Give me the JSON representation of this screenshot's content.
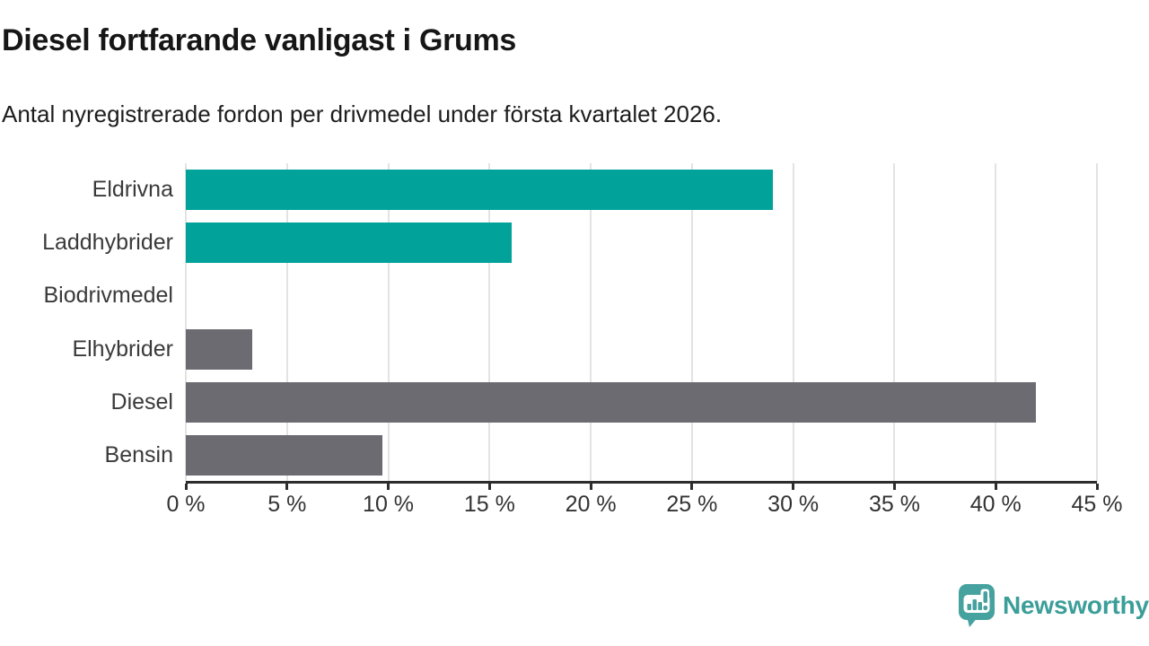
{
  "chart_data": {
    "type": "bar",
    "orientation": "horizontal",
    "title": "Diesel fortfarande vanligast i Grums",
    "subtitle": "Antal nyregistrerade fordon per drivmedel under första kvartalet 2026.",
    "categories": [
      "Eldrivna",
      "Laddhybrider",
      "Biodrivmedel",
      "Elhybrider",
      "Diesel",
      "Bensin"
    ],
    "values": [
      29,
      16.1,
      0,
      3.3,
      42,
      9.7
    ],
    "unit": "%",
    "bar_colors": [
      "#00a29a",
      "#00a29a",
      "#00a29a",
      "#6c6b72",
      "#6c6b72",
      "#6c6b72"
    ],
    "xlim": [
      0,
      45
    ],
    "x_tick_step": 5,
    "x_tick_labels": [
      "0 %",
      "5 %",
      "10 %",
      "15 %",
      "20 %",
      "25 %",
      "30 %",
      "35 %",
      "40 %",
      "45 %"
    ],
    "xlabel": "",
    "ylabel": "",
    "grid": true,
    "legend": false
  },
  "branding": {
    "logo_text": "Newsworthy",
    "logo_icon": "newsworthy-speech-bubble-bar-chart-icon",
    "logo_color": "#3b9e99",
    "logo_icon_color": "#46a29e"
  },
  "colors": {
    "background": "#ffffff",
    "title": "#161616",
    "subtitle": "#1d1d1d",
    "axis": "#2d2d2d",
    "tick_label": "#333333",
    "category_label": "#3a3a3a",
    "gridline": "#e3e3e3",
    "teal_bar": "#00a29a",
    "gray_bar": "#6c6b72"
  }
}
